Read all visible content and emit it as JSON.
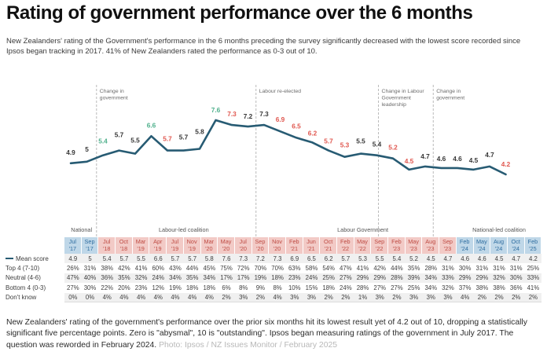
{
  "title": "Rating of government performance over the 6 months",
  "subtitle": "New Zealanders' rating of the Government's performance in the 6 months preceding the survey significantly decreased with the lowest score recorded since Ipsos began tracking in 2017. 41% of New Zealanders rated the performance as 0-3 out of 10.",
  "colors": {
    "line": "#275b73",
    "increase": "#4fb08c",
    "decrease": "#e0574f",
    "neutral_label": "#363636",
    "annotation_text": "#6b6b6b",
    "annotation_line": "#b9b9b9",
    "header_blue_bg": "#bfd7e8",
    "header_blue_text": "#2e6da0",
    "header_pink_bg": "#f2cac6",
    "header_pink_text": "#be4a42",
    "row_stripe": "#f0f0f0"
  },
  "chart_data": {
    "type": "line",
    "title": "Rating of government performance over the 6 months",
    "x": [
      "Jul '17",
      "Sep '17",
      "Jul '18",
      "Oct '18",
      "Mar '19",
      "Apr '19",
      "Jul '19",
      "Nov '19",
      "Mar '20",
      "May '20",
      "Jul '20",
      "Sep '20",
      "Nov '20",
      "Feb '21",
      "Jun '21",
      "Oct '21",
      "Feb '22",
      "May '22",
      "Sep '22",
      "Feb '23",
      "May '23",
      "Aug '23",
      "Sep '23",
      "Feb '24",
      "May '24",
      "Aug '24",
      "Oct '24",
      "Feb '25"
    ],
    "series": [
      {
        "name": "Mean score",
        "values": [
          4.9,
          5,
          5.4,
          5.7,
          5.5,
          6.6,
          5.7,
          5.7,
          5.8,
          7.6,
          7.3,
          7.2,
          7.3,
          6.9,
          6.5,
          6.2,
          5.7,
          5.3,
          5.5,
          5.4,
          5.2,
          4.5,
          4.7,
          4.6,
          4.6,
          4.5,
          4.7,
          4.2
        ]
      }
    ],
    "significance": [
      "same",
      "same",
      "up",
      "same",
      "same",
      "up",
      "down",
      "same",
      "same",
      "up",
      "down",
      "same",
      "same",
      "down",
      "down",
      "down",
      "down",
      "down",
      "same",
      "same",
      "down",
      "down",
      "same",
      "same",
      "same",
      "same",
      "same",
      "down"
    ],
    "annotations": [
      {
        "lines": [
          "Change in",
          "government"
        ],
        "after_index": 1
      },
      {
        "lines": [
          "Labour re-elected"
        ],
        "after_index": 11
      },
      {
        "lines": [
          "Change in Labour",
          "Government",
          "leadership"
        ],
        "after_index": 19
      },
      {
        "lines": [
          "Change in",
          "government"
        ],
        "after_index": 22
      }
    ],
    "ylim": [
      0,
      10
    ],
    "grid": false,
    "legend_position": "table-row-label"
  },
  "table": {
    "groups": [
      {
        "label": "National",
        "span": 2,
        "color": "blue"
      },
      {
        "label": "Labour-led coalition",
        "span": 10,
        "color": "pink"
      },
      {
        "label": "Labour Government",
        "span": 11,
        "color": "pink"
      },
      {
        "label": "National-led coalition",
        "span": 5,
        "color": "blue"
      }
    ],
    "columns": [
      {
        "month": "Jul",
        "year": "'17"
      },
      {
        "month": "Sep",
        "year": "'17"
      },
      {
        "month": "Jul",
        "year": "'18"
      },
      {
        "month": "Oct",
        "year": "'18"
      },
      {
        "month": "Mar",
        "year": "'19"
      },
      {
        "month": "Apr",
        "year": "'19"
      },
      {
        "month": "Jul",
        "year": "'19"
      },
      {
        "month": "Nov",
        "year": "'19"
      },
      {
        "month": "Mar",
        "year": "'20"
      },
      {
        "month": "May",
        "year": "'20"
      },
      {
        "month": "Jul",
        "year": "'20"
      },
      {
        "month": "Sep",
        "year": "'20"
      },
      {
        "month": "Nov",
        "year": "'20"
      },
      {
        "month": "Feb",
        "year": "'21"
      },
      {
        "month": "Jun",
        "year": "'21"
      },
      {
        "month": "Oct",
        "year": "'21"
      },
      {
        "month": "Feb",
        "year": "'22"
      },
      {
        "month": "May",
        "year": "'22"
      },
      {
        "month": "Sep",
        "year": "'22"
      },
      {
        "month": "Feb",
        "year": "'23"
      },
      {
        "month": "May",
        "year": "'23"
      },
      {
        "month": "Aug",
        "year": "'23"
      },
      {
        "month": "Sep",
        "year": "'23"
      },
      {
        "month": "Feb",
        "year": "'24"
      },
      {
        "month": "May",
        "year": "'24"
      },
      {
        "month": "Aug",
        "year": "'24"
      },
      {
        "month": "Oct",
        "year": "'24"
      },
      {
        "month": "Feb",
        "year": "'25"
      }
    ],
    "rows": [
      {
        "label": "Mean score",
        "legend": true,
        "stripe": true,
        "values": [
          "4.9",
          "5",
          "5.4",
          "5.7",
          "5.5",
          "6.6",
          "5.7",
          "5.7",
          "5.8",
          "7.6",
          "7.3",
          "7.2",
          "7.3",
          "6.9",
          "6.5",
          "6.2",
          "5.7",
          "5.3",
          "5.5",
          "5.4",
          "5.2",
          "4.5",
          "4.7",
          "4.6",
          "4.6",
          "4.5",
          "4.7",
          "4.2"
        ]
      },
      {
        "label": "Top 4 (7-10)",
        "legend": false,
        "stripe": false,
        "values": [
          "26%",
          "31%",
          "38%",
          "42%",
          "41%",
          "60%",
          "43%",
          "44%",
          "45%",
          "75%",
          "72%",
          "70%",
          "70%",
          "63%",
          "58%",
          "54%",
          "47%",
          "41%",
          "42%",
          "44%",
          "35%",
          "28%",
          "31%",
          "30%",
          "31%",
          "31%",
          "31%",
          "25%"
        ]
      },
      {
        "label": "Neutral (4-6)",
        "legend": false,
        "stripe": true,
        "values": [
          "47%",
          "40%",
          "36%",
          "35%",
          "32%",
          "24%",
          "34%",
          "35%",
          "34%",
          "17%",
          "17%",
          "19%",
          "18%",
          "23%",
          "24%",
          "25%",
          "27%",
          "29%",
          "29%",
          "28%",
          "39%",
          "34%",
          "33%",
          "29%",
          "29%",
          "32%",
          "30%",
          "33%"
        ]
      },
      {
        "label": "Bottom 4 (0-3)",
        "legend": false,
        "stripe": false,
        "values": [
          "27%",
          "30%",
          "22%",
          "20%",
          "23%",
          "12%",
          "19%",
          "18%",
          "18%",
          "6%",
          "8%",
          "9%",
          "8%",
          "10%",
          "15%",
          "18%",
          "24%",
          "28%",
          "27%",
          "27%",
          "25%",
          "34%",
          "32%",
          "37%",
          "38%",
          "38%",
          "36%",
          "41%"
        ]
      },
      {
        "label": "Don't know",
        "legend": false,
        "stripe": true,
        "values": [
          "0%",
          "0%",
          "4%",
          "4%",
          "4%",
          "4%",
          "4%",
          "4%",
          "4%",
          "2%",
          "3%",
          "2%",
          "4%",
          "3%",
          "3%",
          "2%",
          "2%",
          "1%",
          "3%",
          "2%",
          "3%",
          "3%",
          "3%",
          "4%",
          "2%",
          "2%",
          "2%",
          "2%"
        ]
      }
    ]
  },
  "footer": {
    "text": "New Zealanders' rating of the government's performance over the prior six months hit its lowest result yet of 4.2 out of 10, dropping a statistically significant five percentage points. Zero is \"abysmal\", 10 is \"outstanding\". Ipsos began measuring ratings of the government in July 2017. The question was reworded in February 2024.",
    "credit": "Photo: Ipsos / NZ Issues Monitor / February 2025"
  }
}
